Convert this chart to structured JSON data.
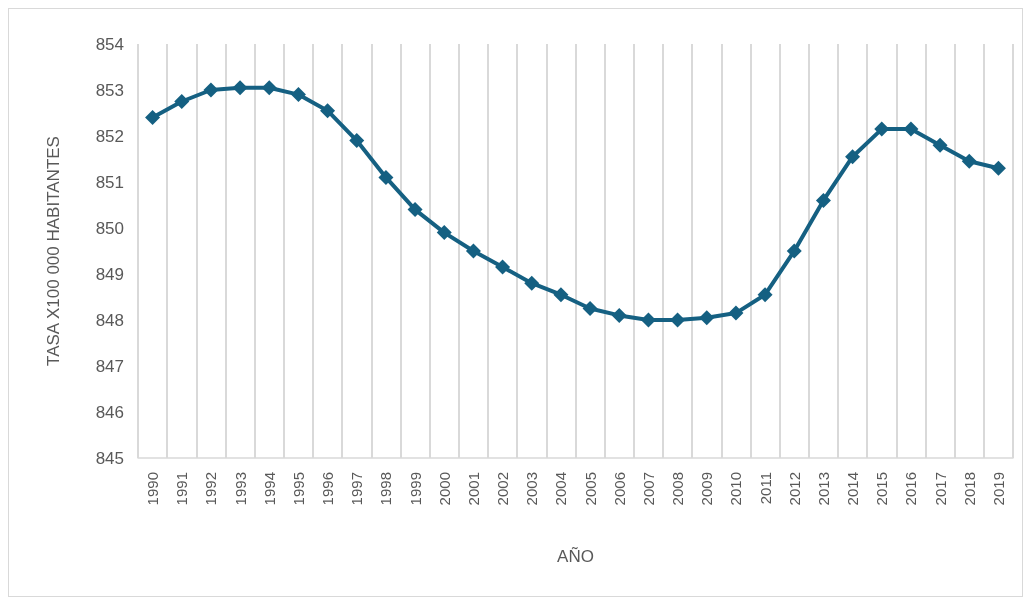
{
  "chart_data": {
    "type": "line",
    "xlabel": "AÑO",
    "ylabel": "TASA X100 000 HABITANTES",
    "categories": [
      "1990",
      "1991",
      "1992",
      "1993",
      "1994",
      "1995",
      "1996",
      "1997",
      "1998",
      "1999",
      "2000",
      "2001",
      "2002",
      "2003",
      "2004",
      "2005",
      "2006",
      "2007",
      "2008",
      "2009",
      "2010",
      "2011",
      "2012",
      "2013",
      "2014",
      "2015",
      "2016",
      "2017",
      "2018",
      "2019"
    ],
    "series": [
      {
        "color": "#156082",
        "values": [
          852.4,
          852.75,
          853.0,
          853.05,
          853.05,
          852.9,
          852.55,
          851.9,
          851.1,
          850.4,
          849.9,
          849.5,
          849.15,
          848.8,
          848.55,
          848.25,
          848.1,
          848.0,
          848.0,
          848.05,
          848.15,
          848.55,
          849.5,
          850.6,
          851.55,
          852.15,
          852.15,
          851.8,
          851.45,
          851.3
        ]
      }
    ],
    "ylim": [
      845,
      854
    ],
    "yticks": [
      845,
      846,
      847,
      848,
      849,
      850,
      851,
      852,
      853,
      854
    ],
    "grid": "x",
    "marker": "diamond",
    "line_style": "solid"
  }
}
